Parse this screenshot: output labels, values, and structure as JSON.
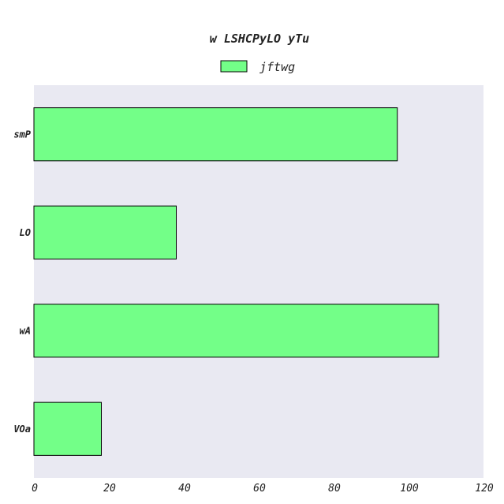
{
  "chart_data": {
    "type": "bar",
    "orientation": "horizontal",
    "title": "w LSHCPyLO yTu",
    "xlabel": "",
    "ylabel": "",
    "categories": [
      "smP",
      "LO",
      "wA",
      "VOa"
    ],
    "series": [
      {
        "name": "jftwg",
        "values": [
          97,
          38,
          108,
          18
        ]
      }
    ],
    "xlim": [
      0,
      120
    ],
    "xticks": [
      "0",
      "20",
      "40",
      "60",
      "80",
      "100",
      "120"
    ],
    "legend": "top-center",
    "grid": false,
    "colors": {
      "bar": "#73ff88",
      "bar_edge": "#000000",
      "plot_bg": "#e9e9f2"
    }
  }
}
